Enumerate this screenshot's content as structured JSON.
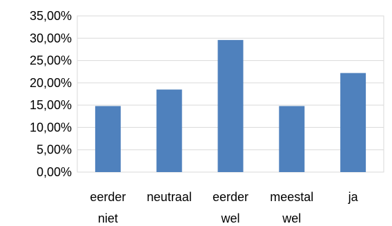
{
  "chart_data": {
    "type": "bar",
    "categories": [
      [
        "eerder",
        "niet"
      ],
      [
        "neutraal"
      ],
      [
        "eerder",
        "wel"
      ],
      [
        "meestal",
        "wel"
      ],
      [
        "ja"
      ]
    ],
    "values": [
      14.8,
      18.5,
      29.6,
      14.8,
      22.2
    ],
    "ylim": [
      0,
      35
    ],
    "y_ticks": [
      "0,00%",
      "5,00%",
      "10,00%",
      "15,00%",
      "20,00%",
      "25,00%",
      "30,00%",
      "35,00%"
    ],
    "bar_color": "#4f81bd",
    "grid": true,
    "legend": "none"
  }
}
